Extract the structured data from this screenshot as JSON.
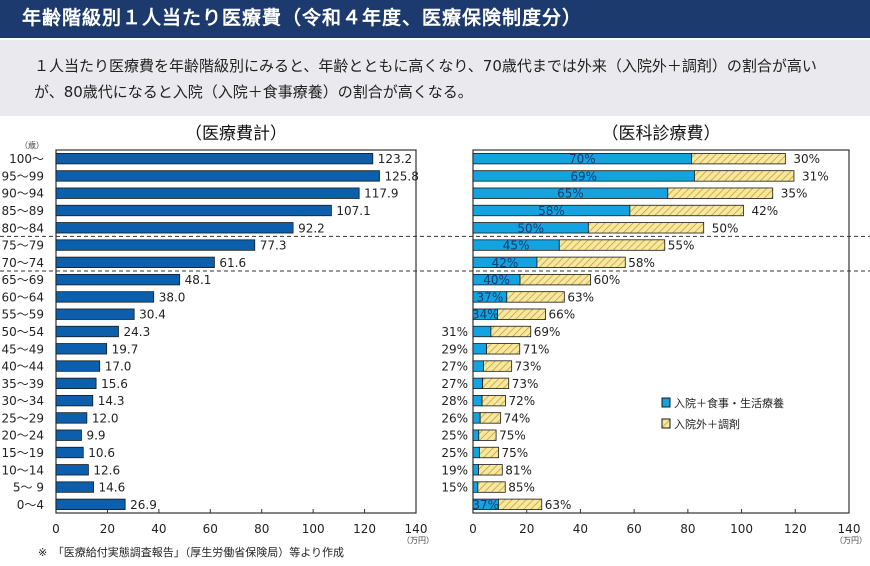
{
  "header": {
    "title": "年齢階級別１人当たり医療費（令和４年度、医療保険制度分）"
  },
  "description": "１人当たり医療費を年齢階級別にみると、年齢とともに高くなり、70歳代までは外来（入院外＋調剤）の割合が高いが、80歳代になると入院（入院＋食事療養）の割合が高くなる。",
  "footnote": "※　「医療給付実態調査報告」（厚生労働省保険局）等より作成",
  "colors": {
    "inpatient_left": "#0b5fad",
    "inpatient_right": "#12a3e0",
    "outpatient": "#f6e7a3",
    "hatch": "#c9a227"
  },
  "chart_data": [
    {
      "type": "bar",
      "orientation": "horizontal",
      "title": "（医療費計）",
      "ylabel": "（歳）",
      "xunit": "（万円）",
      "xlim": [
        0,
        140
      ],
      "xticks": [
        0,
        20,
        40,
        60,
        80,
        100,
        120,
        140
      ],
      "categories": [
        "100～",
        "95～99",
        "90～94",
        "85～89",
        "80～84",
        "75～79",
        "70～74",
        "65～69",
        "60～64",
        "55～59",
        "50～54",
        "45～49",
        "40～44",
        "35～39",
        "30～34",
        "25～29",
        "20～24",
        "15～19",
        "10～14",
        "5～ 9",
        "0～4"
      ],
      "values": [
        123.2,
        125.8,
        117.9,
        107.1,
        92.2,
        77.3,
        61.6,
        48.1,
        38.0,
        30.4,
        24.3,
        19.7,
        17.0,
        15.6,
        14.3,
        12.0,
        9.9,
        10.6,
        12.6,
        14.6,
        26.9
      ],
      "value_labels": [
        "123.2",
        "125.8",
        "117.9",
        "107.1",
        "92.2",
        "77.3",
        "61.6",
        "48.1",
        "38.0",
        "30.4",
        "24.3",
        "19.7",
        "17.0",
        "15.6",
        "14.3",
        "12.0",
        "9.9",
        "10.6",
        "12.6",
        "14.6",
        "26.9"
      ]
    },
    {
      "type": "bar",
      "orientation": "horizontal",
      "stacked": true,
      "title": "（医科診療費）",
      "xunit": "（万円）",
      "xlim": [
        0,
        140
      ],
      "xticks": [
        0,
        20,
        40,
        60,
        80,
        100,
        120,
        140
      ],
      "legend_position": "right-middle",
      "totals": [
        116.3,
        119.5,
        111.6,
        100.7,
        85.9,
        71.4,
        56.7,
        43.8,
        34.0,
        27.0,
        21.5,
        17.4,
        14.4,
        13.3,
        12.1,
        10.3,
        8.6,
        9.5,
        10.9,
        12.0,
        25.6
      ],
      "series": [
        {
          "name": "入院＋食事・生活療養",
          "share": [
            70,
            69,
            65,
            58,
            50,
            45,
            42,
            40,
            37,
            34,
            31,
            29,
            27,
            27,
            28,
            26,
            25,
            25,
            19,
            15,
            37
          ],
          "labels": [
            "70%",
            "69%",
            "65%",
            "58%",
            "50%",
            "45%",
            "42%",
            "40%",
            "37%",
            "34%",
            "31%",
            "29%",
            "27%",
            "27%",
            "28%",
            "26%",
            "25%",
            "25%",
            "19%",
            "15%",
            "37%"
          ]
        },
        {
          "name": "入院外＋調剤",
          "share": [
            30,
            31,
            35,
            42,
            50,
            55,
            58,
            60,
            63,
            66,
            69,
            71,
            73,
            73,
            72,
            74,
            75,
            75,
            81,
            85,
            63
          ],
          "labels": [
            "30%",
            "31%",
            "35%",
            "42%",
            "50%",
            "55%",
            "58%",
            "60%",
            "63%",
            "66%",
            "69%",
            "71%",
            "73%",
            "73%",
            "72%",
            "74%",
            "75%",
            "75%",
            "81%",
            "85%",
            "63%"
          ]
        }
      ]
    }
  ]
}
